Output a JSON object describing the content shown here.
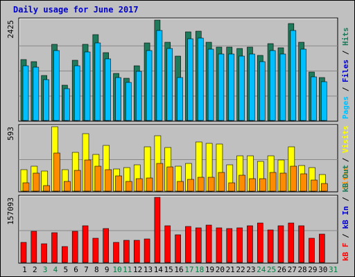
{
  "title": "Daily usage for June 2017",
  "colors": {
    "background": "#c0c0c0",
    "panel": "#c0c0c0",
    "grid": "#888888",
    "hits": "#1e7a5a",
    "files": "#00bfff",
    "pages": "#00bfff",
    "visits": "#ffff00",
    "sites": "#ff8c00",
    "kbf": "#ff0000",
    "kbin": "#0000cc",
    "kbout": "#1e7a5a",
    "weekday": "#000000",
    "weekend": "#008040",
    "title": "#0000cc"
  },
  "chart_data": [
    {
      "type": "bar",
      "panel": "hits_files_pages",
      "ylabel_max": "2425",
      "ylim": [
        0,
        2425
      ],
      "side_label": [
        {
          "text": "Pages",
          "color": "#00bfff"
        },
        {
          "text": " / ",
          "color": "#000000"
        },
        {
          "text": "Files",
          "color": "#0000cc"
        },
        {
          "text": " / ",
          "color": "#000000"
        },
        {
          "text": "Hits",
          "color": "#1e7a5a"
        }
      ],
      "categories": [
        "1",
        "2",
        "3",
        "4",
        "5",
        "6",
        "7",
        "8",
        "9",
        "10",
        "11",
        "12",
        "13",
        "14",
        "15",
        "16",
        "17",
        "18",
        "19",
        "20",
        "21",
        "22",
        "23",
        "24",
        "25",
        "26",
        "27",
        "28",
        "29",
        "30",
        "31"
      ],
      "series": [
        {
          "name": "Hits",
          "values": [
            1473,
            1425,
            1094,
            1848,
            845,
            1460,
            1840,
            2080,
            1642,
            1140,
            1021,
            1315,
            1876,
            2425,
            1890,
            1560,
            2148,
            2165,
            1896,
            1780,
            1765,
            1733,
            1780,
            1570,
            1854,
            1760,
            2340,
            1896,
            1168,
            1045,
            0
          ]
        },
        {
          "name": "Files",
          "values": [
            1321,
            1290,
            989,
            1690,
            766,
            1320,
            1659,
            1873,
            1488,
            1038,
            920,
            1182,
            1688,
            2166,
            1740,
            1030,
            1971,
            1984,
            1720,
            1606,
            1600,
            1560,
            1600,
            1417,
            1690,
            1600,
            2180,
            1727,
            1050,
            940,
            0
          ]
        },
        {
          "name": "Pages",
          "values": [
            1321,
            1290,
            989,
            1690,
            766,
            1320,
            1659,
            1873,
            1488,
            1038,
            920,
            1182,
            1688,
            2166,
            1740,
            1030,
            1971,
            1984,
            1720,
            1606,
            1600,
            1560,
            1600,
            1417,
            1690,
            1600,
            2180,
            1727,
            1050,
            940,
            0
          ]
        }
      ]
    },
    {
      "type": "bar",
      "panel": "visits_sites",
      "ylabel_max": "593",
      "ylim": [
        0,
        593
      ],
      "side_label": [
        {
          "text": "Sites",
          "color": "#ff8c00"
        },
        {
          "text": " / ",
          "color": "#000000"
        },
        {
          "text": "Visits",
          "color": "#ffff00"
        }
      ],
      "categories": [
        "1",
        "2",
        "3",
        "4",
        "5",
        "6",
        "7",
        "8",
        "9",
        "10",
        "11",
        "12",
        "13",
        "14",
        "15",
        "16",
        "17",
        "18",
        "19",
        "20",
        "21",
        "22",
        "23",
        "24",
        "25",
        "26",
        "27",
        "28",
        "29",
        "30",
        "31"
      ],
      "series": [
        {
          "name": "Visits",
          "values": [
            200,
            232,
            187,
            593,
            200,
            360,
            527,
            335,
            423,
            207,
            219,
            245,
            405,
            513,
            400,
            229,
            257,
            455,
            438,
            433,
            245,
            325,
            323,
            271,
            325,
            284,
            408,
            238,
            219,
            155,
            0
          ]
        },
        {
          "name": "Sites",
          "values": [
            79,
            167,
            54,
            350,
            89,
            192,
            287,
            227,
            200,
            142,
            89,
            114,
            124,
            257,
            224,
            89,
            106,
            129,
            129,
            169,
            79,
            149,
            117,
            114,
            169,
            165,
            230,
            159,
            104,
            67,
            0
          ]
        }
      ]
    },
    {
      "type": "bar",
      "panel": "kbytes",
      "ylabel_max": "157093",
      "ylim": [
        0,
        157093
      ],
      "side_label": [
        {
          "text": "kB F",
          "color": "#ff0000"
        },
        {
          "text": " / ",
          "color": "#000000"
        },
        {
          "text": "kB In",
          "color": "#0000cc"
        },
        {
          "text": " / ",
          "color": "#000000"
        },
        {
          "text": "kB Out",
          "color": "#1e7a5a"
        }
      ],
      "categories": [
        "1",
        "2",
        "3",
        "4",
        "5",
        "6",
        "7",
        "8",
        "9",
        "10",
        "11",
        "12",
        "13",
        "14",
        "15",
        "16",
        "17",
        "18",
        "19",
        "20",
        "21",
        "22",
        "23",
        "24",
        "25",
        "26",
        "27",
        "28",
        "29",
        "30",
        "31"
      ],
      "series": [
        {
          "name": "kB F",
          "values": [
            48100,
            74600,
            44700,
            72500,
            38100,
            74600,
            89400,
            58200,
            81300,
            48100,
            53200,
            53200,
            56700,
            157093,
            89400,
            66200,
            86200,
            84100,
            91000,
            84100,
            81300,
            84100,
            89400,
            94500,
            78000,
            89400,
            94500,
            89400,
            58200,
            69300,
            0
          ]
        }
      ]
    }
  ]
}
